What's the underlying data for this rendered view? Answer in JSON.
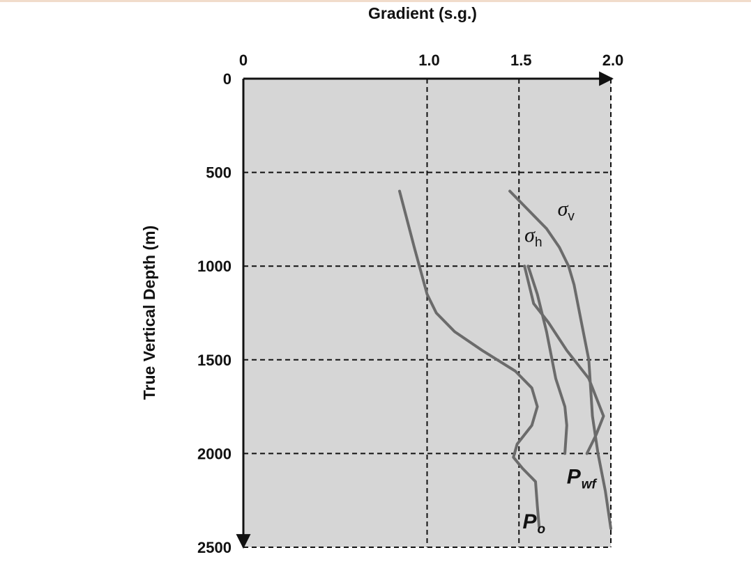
{
  "chart_data": {
    "type": "line",
    "title": "Gradient (s.g.)",
    "xlabel": "Gradient (s.g.)",
    "ylabel": "True Vertical Depth (m)",
    "xlim": [
      0,
      2.0
    ],
    "ylim": [
      0,
      2500
    ],
    "x_ticks": [
      0,
      1.0,
      1.5,
      2.0
    ],
    "x_tick_labels": [
      "0",
      "1.0",
      "1.5",
      "2.0"
    ],
    "y_ticks": [
      0,
      500,
      1000,
      1500,
      2000,
      2500
    ],
    "y_tick_labels": [
      "0",
      "500",
      "1000",
      "1500",
      "2000",
      "2500"
    ],
    "x_axis_position": "top",
    "y_axis_inverted": true,
    "grid": true,
    "grid_style": "dashed",
    "background_color": "#d6d6d6",
    "curve_color": "#6b6b6b",
    "series": [
      {
        "name": "P",
        "subscript": "o",
        "points": [
          [
            0.85,
            600
          ],
          [
            0.93,
            900
          ],
          [
            1.0,
            1150
          ],
          [
            1.05,
            1250
          ],
          [
            1.15,
            1350
          ],
          [
            1.3,
            1450
          ],
          [
            1.48,
            1560
          ],
          [
            1.57,
            1650
          ],
          [
            1.6,
            1750
          ],
          [
            1.57,
            1850
          ],
          [
            1.49,
            1950
          ],
          [
            1.47,
            2020
          ],
          [
            1.52,
            2080
          ],
          [
            1.59,
            2150
          ],
          [
            1.6,
            2280
          ],
          [
            1.61,
            2390
          ]
        ]
      },
      {
        "name": "σ",
        "subscript": "h",
        "points": [
          [
            1.53,
            1000
          ],
          [
            1.58,
            1200
          ],
          [
            1.66,
            1300
          ],
          [
            1.76,
            1450
          ],
          [
            1.88,
            1600
          ],
          [
            1.92,
            1700
          ],
          [
            1.96,
            1800
          ],
          [
            1.92,
            1900
          ],
          [
            1.87,
            2000
          ]
        ]
      },
      {
        "name": "P",
        "subscript": "wf",
        "points": [
          [
            1.55,
            1000
          ],
          [
            1.6,
            1150
          ],
          [
            1.65,
            1350
          ],
          [
            1.7,
            1600
          ],
          [
            1.75,
            1750
          ],
          [
            1.76,
            1850
          ],
          [
            1.75,
            2000
          ]
        ]
      },
      {
        "name": "σ",
        "subscript": "v",
        "points": [
          [
            1.45,
            600
          ],
          [
            1.55,
            700
          ],
          [
            1.65,
            800
          ],
          [
            1.72,
            900
          ],
          [
            1.77,
            1000
          ],
          [
            1.8,
            1100
          ],
          [
            1.84,
            1300
          ],
          [
            1.88,
            1500
          ],
          [
            1.9,
            1800
          ],
          [
            1.93,
            2000
          ],
          [
            1.97,
            2200
          ],
          [
            2.0,
            2400
          ]
        ]
      }
    ],
    "annotations": [
      {
        "text": "σ",
        "subscript": "h",
        "x": 1.53,
        "y": 870
      },
      {
        "text": "σ",
        "subscript": "v",
        "x": 1.71,
        "y": 730
      },
      {
        "text": "P",
        "subscript": "wf",
        "x": 1.76,
        "y": 2160
      },
      {
        "text": "P",
        "subscript": "o",
        "x": 1.52,
        "y": 2400
      }
    ]
  }
}
